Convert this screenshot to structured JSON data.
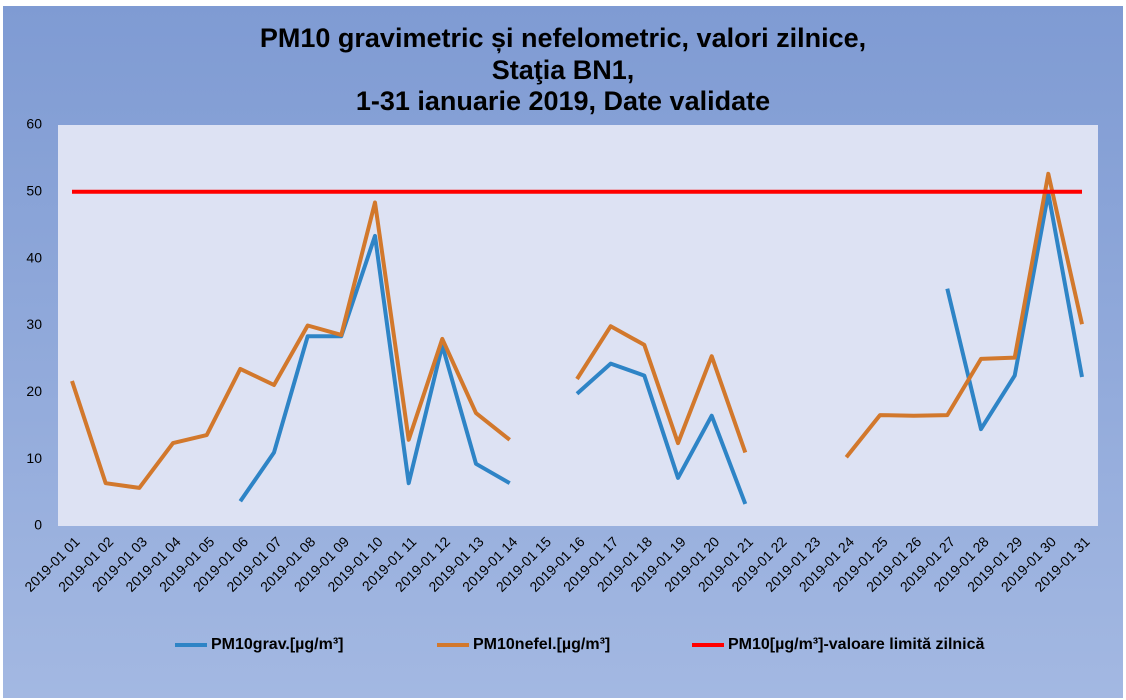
{
  "chart_data": {
    "type": "line",
    "title": [
      "PM10 gravimetric și nefelometric, valori zilnice,",
      "Staţia BN1,",
      "1-31 ianuarie 2019, Date validate"
    ],
    "categories": [
      "2019-01 01",
      "2019-01 02",
      "2019-01 03",
      "2019-01 04",
      "2019-01 05",
      "2019-01 06",
      "2019-01 07",
      "2019-01 08",
      "2019-01 09",
      "2019-01 10",
      "2019-01 11",
      "2019-01 12",
      "2019-01 13",
      "2019-01 14",
      "2019-01 15",
      "2019-01 16",
      "2019-01 17",
      "2019-01 18",
      "2019-01 19",
      "2019-01 20",
      "2019-01 21",
      "2019-01 22",
      "2019-01 23",
      "2019-01 24",
      "2019-01 25",
      "2019-01 26",
      "2019-01 27",
      "2019-01 28",
      "2019-01 29",
      "2019-01 30",
      "2019-01 31"
    ],
    "series": [
      {
        "name": "PM10grav.[µg/m³]",
        "color": "#2e84c6",
        "values": [
          null,
          null,
          null,
          null,
          null,
          3.7,
          11,
          28.4,
          28.4,
          43.4,
          6.4,
          27,
          9.3,
          6.4,
          null,
          19.8,
          24.3,
          22.5,
          7.2,
          16.5,
          3.3,
          null,
          null,
          null,
          null,
          null,
          35.5,
          14.5,
          22.5,
          49.8,
          22.3
        ]
      },
      {
        "name": "PM10nefel.[µg/m³]",
        "color": "#d2782c",
        "values": [
          21.7,
          6.4,
          5.7,
          12.4,
          13.6,
          23.5,
          21.1,
          30,
          28.6,
          48.4,
          12.9,
          28,
          16.9,
          12.9,
          null,
          22,
          29.9,
          27.1,
          12.4,
          25.4,
          11,
          null,
          null,
          10.3,
          16.6,
          16.5,
          16.6,
          25,
          25.2,
          52.7,
          30.2
        ]
      },
      {
        "name": "PM10[µg/m³]-valoare limită zilnică",
        "color": "#ff0000",
        "values": [
          50,
          50,
          50,
          50,
          50,
          50,
          50,
          50,
          50,
          50,
          50,
          50,
          50,
          50,
          50,
          50,
          50,
          50,
          50,
          50,
          50,
          50,
          50,
          50,
          50,
          50,
          50,
          50,
          50,
          50,
          50
        ]
      }
    ],
    "ylim": [
      0,
      60
    ],
    "yticks": [
      0,
      10,
      20,
      30,
      40,
      50,
      60
    ],
    "grid": false,
    "legend": "bottom"
  }
}
